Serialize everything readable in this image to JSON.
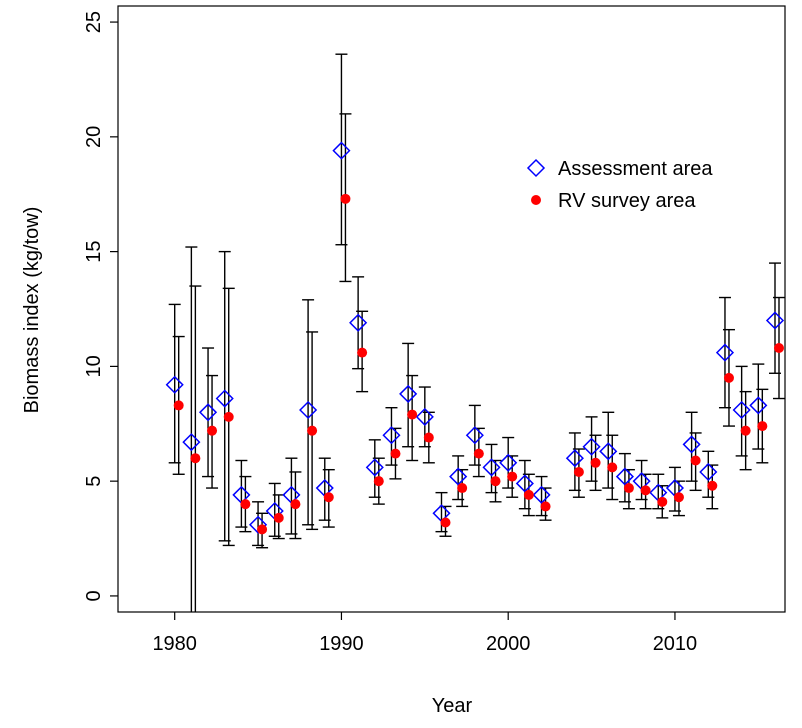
{
  "chart_data": {
    "type": "errorbar-scatter",
    "xlabel": "Year",
    "ylabel": "Biomass index (kg/tow)",
    "x": [
      1980,
      1981,
      1982,
      1983,
      1984,
      1985,
      1986,
      1987,
      1988,
      1989,
      1990,
      1991,
      1992,
      1993,
      1994,
      1995,
      1996,
      1997,
      1998,
      1999,
      2000,
      2001,
      2002,
      2004,
      2005,
      2006,
      2007,
      2008,
      2009,
      2010,
      2011,
      2012,
      2013,
      2014,
      2015,
      2016
    ],
    "xlim": [
      1976.6,
      2016.6
    ],
    "xticks": [
      1980,
      1990,
      2000,
      2010
    ],
    "ylim": [
      -0.7,
      25.7
    ],
    "yticks": [
      0,
      5,
      10,
      15,
      20,
      25
    ],
    "legend": "top right",
    "series": [
      {
        "name": "Assessment area",
        "color": "#0000ff",
        "marker": "diamond",
        "values": [
          9.2,
          6.7,
          8.0,
          8.6,
          4.4,
          3.1,
          3.7,
          4.4,
          8.1,
          4.7,
          19.4,
          11.9,
          5.6,
          7.0,
          8.8,
          7.8,
          3.6,
          5.2,
          7.0,
          5.6,
          5.8,
          4.9,
          4.4,
          6.0,
          6.5,
          6.3,
          5.2,
          5.0,
          4.5,
          4.7,
          6.6,
          5.4,
          10.6,
          8.1,
          8.3,
          12.0
        ],
        "lower": [
          5.8,
          -1.7,
          5.2,
          2.4,
          3.0,
          2.2,
          2.6,
          2.7,
          3.1,
          3.3,
          15.3,
          9.9,
          4.3,
          5.7,
          6.5,
          6.5,
          2.8,
          4.2,
          5.7,
          4.5,
          4.7,
          3.8,
          3.5,
          4.6,
          5.0,
          4.7,
          4.1,
          4.2,
          3.8,
          3.7,
          5.0,
          4.3,
          8.2,
          6.1,
          6.4,
          9.7
        ],
        "upper": [
          12.7,
          15.2,
          10.8,
          15.0,
          5.9,
          4.1,
          4.9,
          6.0,
          12.9,
          6.0,
          23.6,
          13.9,
          6.8,
          8.2,
          11.0,
          9.1,
          4.5,
          6.1,
          8.3,
          6.6,
          6.9,
          5.9,
          5.2,
          7.1,
          7.8,
          8.0,
          6.2,
          5.9,
          5.3,
          5.6,
          8.0,
          6.3,
          13.0,
          10.0,
          10.1,
          14.5
        ]
      },
      {
        "name": "RV survey area",
        "color": "#ff0000",
        "marker": "dot",
        "values": [
          8.3,
          6.0,
          7.2,
          7.8,
          4.0,
          2.9,
          3.4,
          4.0,
          7.2,
          4.3,
          17.3,
          10.6,
          5.0,
          6.2,
          7.9,
          6.9,
          3.2,
          4.7,
          6.2,
          5.0,
          5.2,
          4.4,
          3.9,
          5.4,
          5.8,
          5.6,
          4.7,
          4.6,
          4.1,
          4.3,
          5.9,
          4.8,
          9.5,
          7.2,
          7.4,
          10.8
        ],
        "lower": [
          5.3,
          -1.7,
          4.7,
          2.2,
          2.8,
          2.1,
          2.5,
          2.5,
          2.9,
          3.0,
          13.7,
          8.9,
          4.0,
          5.1,
          5.9,
          5.8,
          2.6,
          3.9,
          5.2,
          4.1,
          4.3,
          3.5,
          3.3,
          4.3,
          4.6,
          4.2,
          3.8,
          3.8,
          3.4,
          3.5,
          4.6,
          3.8,
          7.4,
          5.5,
          5.8,
          8.6
        ],
        "upper": [
          11.3,
          13.5,
          9.6,
          13.4,
          5.2,
          3.6,
          4.4,
          5.4,
          11.5,
          5.5,
          21.0,
          12.4,
          6.0,
          7.3,
          9.6,
          8.0,
          3.9,
          5.5,
          7.3,
          5.9,
          6.1,
          5.3,
          4.7,
          6.4,
          7.0,
          7.0,
          5.5,
          5.3,
          4.8,
          5.0,
          7.1,
          5.7,
          11.6,
          8.9,
          9.0,
          13.0
        ]
      }
    ]
  }
}
